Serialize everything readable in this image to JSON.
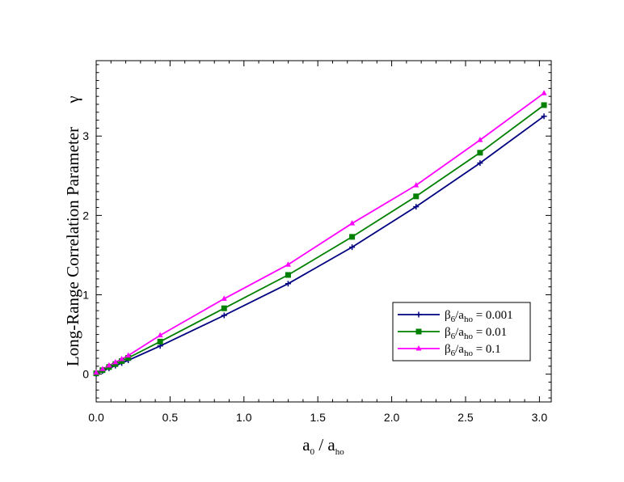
{
  "chart_data": {
    "type": "line",
    "xlabel": {
      "main": "a",
      "sub1": "0",
      "sep": " / a",
      "sub2": "ho"
    },
    "ylabel": {
      "text": "Long-Range Correlation Parameter",
      "symbol": "γ"
    },
    "xlim": [
      0,
      3.08
    ],
    "ylim": [
      -0.35,
      3.95
    ],
    "xticks": [
      0,
      0.5,
      1,
      1.5,
      2,
      2.5,
      3
    ],
    "xtick_labels": [
      "0.0",
      "0.5",
      "1.0",
      "1.5",
      "2.0",
      "2.5",
      "3.0"
    ],
    "yticks": [
      0,
      1,
      2,
      3
    ],
    "ytick_labels": [
      "0",
      "1",
      "2",
      "3"
    ],
    "legend_position": "lower-right",
    "series": [
      {
        "legend": {
          "beta": "β",
          "beta_sub": "6",
          "mid": "/a",
          "mid_sub": "ho",
          "value": " = 0.001"
        },
        "color": "#000080",
        "marker": "plus",
        "x": [
          0.0,
          0.043,
          0.087,
          0.13,
          0.173,
          0.217,
          0.433,
          0.866,
          1.299,
          1.732,
          2.165,
          2.598,
          3.031
        ],
        "y": [
          0.0,
          0.038,
          0.074,
          0.107,
          0.14,
          0.175,
          0.355,
          0.74,
          1.14,
          1.6,
          2.11,
          2.66,
          3.25
        ]
      },
      {
        "legend": {
          "beta": "β",
          "beta_sub": "6",
          "mid": "/a",
          "mid_sub": "ho",
          "value": " = 0.01"
        },
        "color": "#008000",
        "marker": "square",
        "x": [
          0.0,
          0.043,
          0.087,
          0.13,
          0.173,
          0.217,
          0.433,
          0.866,
          1.299,
          1.732,
          2.165,
          2.598,
          3.031
        ],
        "y": [
          0.01,
          0.05,
          0.09,
          0.127,
          0.165,
          0.205,
          0.41,
          0.83,
          1.25,
          1.73,
          2.24,
          2.79,
          3.39
        ]
      },
      {
        "legend": {
          "beta": "β",
          "beta_sub": "6",
          "mid": "/a",
          "mid_sub": "ho",
          "value": " = 0.1"
        },
        "color": "#ff00ff",
        "marker": "triangle",
        "x": [
          0.0,
          0.043,
          0.087,
          0.13,
          0.173,
          0.217,
          0.433,
          0.866,
          1.299,
          1.732,
          2.165,
          2.598,
          3.031
        ],
        "y": [
          0.02,
          0.065,
          0.11,
          0.15,
          0.19,
          0.235,
          0.49,
          0.95,
          1.38,
          1.9,
          2.38,
          2.95,
          3.54
        ]
      }
    ]
  }
}
